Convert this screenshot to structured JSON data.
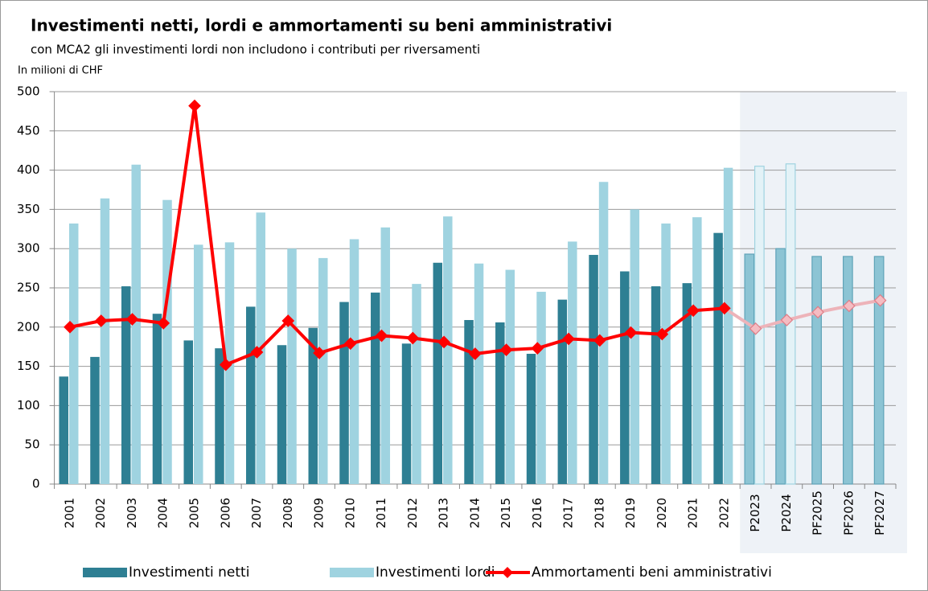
{
  "chart_data": {
    "type": "bar_line",
    "title": "Investimenti netti, lordi e ammortamenti su beni amministrativi",
    "subtitle": "con MCA2 gli investimenti lordi non includono i contributi per riversamenti",
    "y_label": "In milioni di CHF",
    "categories": [
      "2001",
      "2002",
      "2003",
      "2004",
      "2005",
      "2006",
      "2007",
      "2008",
      "2009",
      "2010",
      "2011",
      "2012",
      "2013",
      "2014",
      "2015",
      "2016",
      "2017",
      "2018",
      "2019",
      "2020",
      "2021",
      "2022",
      "P2023",
      "P2024",
      "PF2025",
      "PF2026",
      "PF2027"
    ],
    "series": [
      {
        "name": "Investimenti netti",
        "type": "bar",
        "color": "#2e7f93",
        "values": [
          137,
          162,
          252,
          217,
          183,
          173,
          226,
          177,
          199,
          232,
          244,
          179,
          282,
          209,
          206,
          166,
          235,
          292,
          271,
          252,
          256,
          320,
          293,
          300,
          290,
          290,
          290
        ]
      },
      {
        "name": "Investimenti lordi",
        "type": "bar",
        "color": "#9fd3e0",
        "values": [
          332,
          364,
          407,
          362,
          305,
          308,
          346,
          300,
          288,
          312,
          327,
          255,
          341,
          281,
          273,
          245,
          309,
          385,
          350,
          332,
          340,
          403,
          405,
          408,
          null,
          null,
          null
        ]
      },
      {
        "name": "Ammortamenti beni amministrativi",
        "type": "line",
        "color": "#ff0000",
        "values": [
          200,
          208,
          210,
          205,
          482,
          152,
          168,
          208,
          167,
          179,
          189,
          186,
          181,
          166,
          171,
          173,
          185,
          183,
          193,
          191,
          221,
          224,
          198,
          209,
          219,
          227,
          234
        ]
      }
    ],
    "ylim": [
      0,
      500
    ],
    "yticks": [
      0,
      50,
      100,
      150,
      200,
      250,
      300,
      350,
      400,
      450,
      500
    ],
    "grid": true
  }
}
